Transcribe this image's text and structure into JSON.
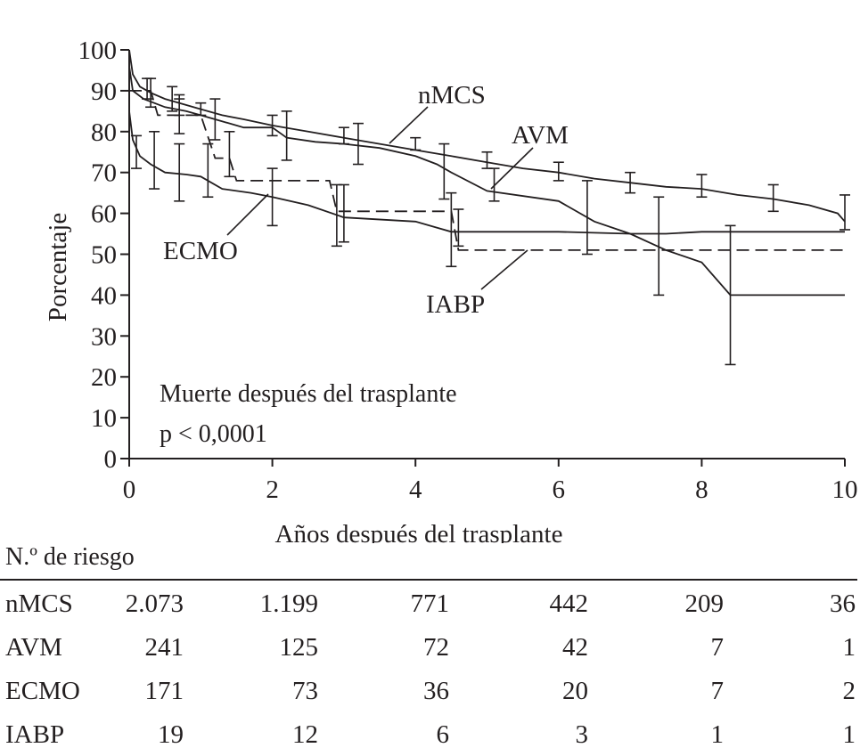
{
  "chart_data": {
    "type": "line",
    "subtype": "kaplan-meier",
    "xlabel": "Años después del trasplante",
    "ylabel": "Porcentaje",
    "xlim": [
      0,
      10
    ],
    "ylim": [
      0,
      100
    ],
    "x_ticks": [
      "0",
      "2",
      "4",
      "6",
      "8",
      "10"
    ],
    "y_ticks": [
      "0",
      "10",
      "20",
      "30",
      "40",
      "50",
      "60",
      "70",
      "80",
      "90",
      "100"
    ],
    "grid": false,
    "legend": "inline labels",
    "annotation": [
      "Muerte después del trasplante",
      "p < 0,0001"
    ],
    "series": [
      {
        "name": "nMCS",
        "style": "solid",
        "points": [
          [
            0,
            100
          ],
          [
            0.05,
            94
          ],
          [
            0.15,
            91
          ],
          [
            0.3,
            89.5
          ],
          [
            0.5,
            88
          ],
          [
            0.8,
            86.5
          ],
          [
            1.0,
            85.5
          ],
          [
            1.3,
            84
          ],
          [
            1.6,
            83
          ],
          [
            2.0,
            81.5
          ],
          [
            2.5,
            80
          ],
          [
            3.0,
            78.5
          ],
          [
            3.5,
            77
          ],
          [
            4.0,
            75.5
          ],
          [
            4.5,
            74
          ],
          [
            5.0,
            72.5
          ],
          [
            5.5,
            71
          ],
          [
            6.0,
            70
          ],
          [
            6.5,
            68.5
          ],
          [
            7.0,
            67.5
          ],
          [
            7.5,
            66.5
          ],
          [
            8.0,
            66
          ],
          [
            8.5,
            64.5
          ],
          [
            9.0,
            63.5
          ],
          [
            9.5,
            62
          ],
          [
            9.9,
            60
          ],
          [
            10.0,
            58
          ]
        ],
        "error_bars": [
          [
            0.25,
            88,
            93
          ],
          [
            0.6,
            85,
            91
          ],
          [
            1.0,
            84,
            87
          ],
          [
            2.0,
            79,
            84
          ],
          [
            3.0,
            77,
            81
          ],
          [
            4.0,
            75.5,
            78.5
          ],
          [
            5.0,
            71,
            75
          ],
          [
            6.0,
            68,
            72.5
          ],
          [
            7.0,
            65,
            70
          ],
          [
            8.0,
            64,
            69.5
          ],
          [
            9.0,
            60.5,
            67
          ],
          [
            10.0,
            56,
            64.5
          ]
        ]
      },
      {
        "name": "AVM",
        "style": "solid",
        "points": [
          [
            0,
            96
          ],
          [
            0.05,
            90
          ],
          [
            0.2,
            88
          ],
          [
            0.5,
            86
          ],
          [
            0.8,
            85
          ],
          [
            1.0,
            84
          ],
          [
            1.2,
            83
          ],
          [
            1.6,
            81
          ],
          [
            2.0,
            81
          ],
          [
            2.2,
            78.5
          ],
          [
            2.6,
            77.5
          ],
          [
            3.0,
            77
          ],
          [
            3.5,
            76
          ],
          [
            4.0,
            74
          ],
          [
            4.3,
            72
          ],
          [
            4.5,
            70
          ],
          [
            5.0,
            65.5
          ],
          [
            6.0,
            63
          ],
          [
            6.2,
            61
          ],
          [
            6.5,
            58
          ],
          [
            7.0,
            55
          ],
          [
            7.5,
            51
          ],
          [
            8.0,
            48
          ],
          [
            8.4,
            40
          ],
          [
            10.0,
            40
          ]
        ],
        "error_bars": [
          [
            0.3,
            86,
            93
          ],
          [
            0.7,
            84,
            89
          ],
          [
            1.2,
            78,
            88
          ],
          [
            2.2,
            73,
            85
          ],
          [
            3.2,
            72,
            82
          ],
          [
            4.4,
            63.5,
            77
          ],
          [
            5.1,
            63,
            71
          ],
          [
            6.4,
            50,
            68
          ],
          [
            7.4,
            40,
            64
          ],
          [
            8.4,
            23,
            57
          ]
        ]
      },
      {
        "name": "ECMO",
        "style": "solid",
        "points": [
          [
            0,
            85
          ],
          [
            0.05,
            78
          ],
          [
            0.15,
            74
          ],
          [
            0.3,
            72
          ],
          [
            0.5,
            70
          ],
          [
            0.8,
            69.5
          ],
          [
            1.0,
            69
          ],
          [
            1.3,
            66
          ],
          [
            1.7,
            65
          ],
          [
            2.0,
            64
          ],
          [
            2.5,
            62
          ],
          [
            3.0,
            59
          ],
          [
            4.0,
            58
          ],
          [
            4.5,
            55.5
          ],
          [
            5.0,
            55.5
          ],
          [
            6.0,
            55.5
          ],
          [
            7.0,
            55
          ],
          [
            7.5,
            55
          ],
          [
            8.0,
            55.5
          ],
          [
            10.0,
            55.5
          ]
        ],
        "error_bars": [
          [
            0.1,
            71,
            79
          ],
          [
            0.35,
            66,
            80
          ],
          [
            0.7,
            63,
            77
          ],
          [
            1.1,
            64,
            77
          ],
          [
            2.0,
            57,
            71
          ],
          [
            3.0,
            53,
            67
          ],
          [
            4.5,
            47,
            65
          ]
        ]
      },
      {
        "name": "IABP",
        "style": "dashed",
        "points": [
          [
            0,
            90
          ],
          [
            0.3,
            90
          ],
          [
            0.4,
            84
          ],
          [
            1.0,
            84
          ],
          [
            1.2,
            73.5
          ],
          [
            1.4,
            73.5
          ],
          [
            1.5,
            68
          ],
          [
            2.8,
            68
          ],
          [
            2.9,
            60.5
          ],
          [
            4.5,
            60.5
          ],
          [
            4.6,
            51
          ],
          [
            10.0,
            51
          ]
        ],
        "error_bars": [
          [
            0.7,
            79.5,
            88
          ],
          [
            1.4,
            69,
            80
          ],
          [
            2.9,
            52,
            67
          ],
          [
            4.6,
            52,
            61
          ]
        ]
      }
    ]
  },
  "labels": {
    "nMCS": "nMCS",
    "AVM": "AVM",
    "ECMO": "ECMO",
    "IABP": "IABP",
    "annotation_line1": "Muerte después del trasplante",
    "annotation_line2": "p < 0,0001",
    "xlabel": "Años después del trasplante",
    "ylabel": "Porcentaje"
  },
  "risk_table": {
    "title": "N.º de riesgo",
    "rows": [
      {
        "name": "nMCS",
        "values": [
          "2.073",
          "1.199",
          "771",
          "442",
          "209",
          "36"
        ]
      },
      {
        "name": "AVM",
        "values": [
          "241",
          "125",
          "72",
          "42",
          "7",
          "1"
        ]
      },
      {
        "name": "ECMO",
        "values": [
          "171",
          "73",
          "36",
          "20",
          "7",
          "2"
        ]
      },
      {
        "name": "IABP",
        "values": [
          "19",
          "12",
          "6",
          "3",
          "1",
          "1"
        ]
      }
    ]
  }
}
